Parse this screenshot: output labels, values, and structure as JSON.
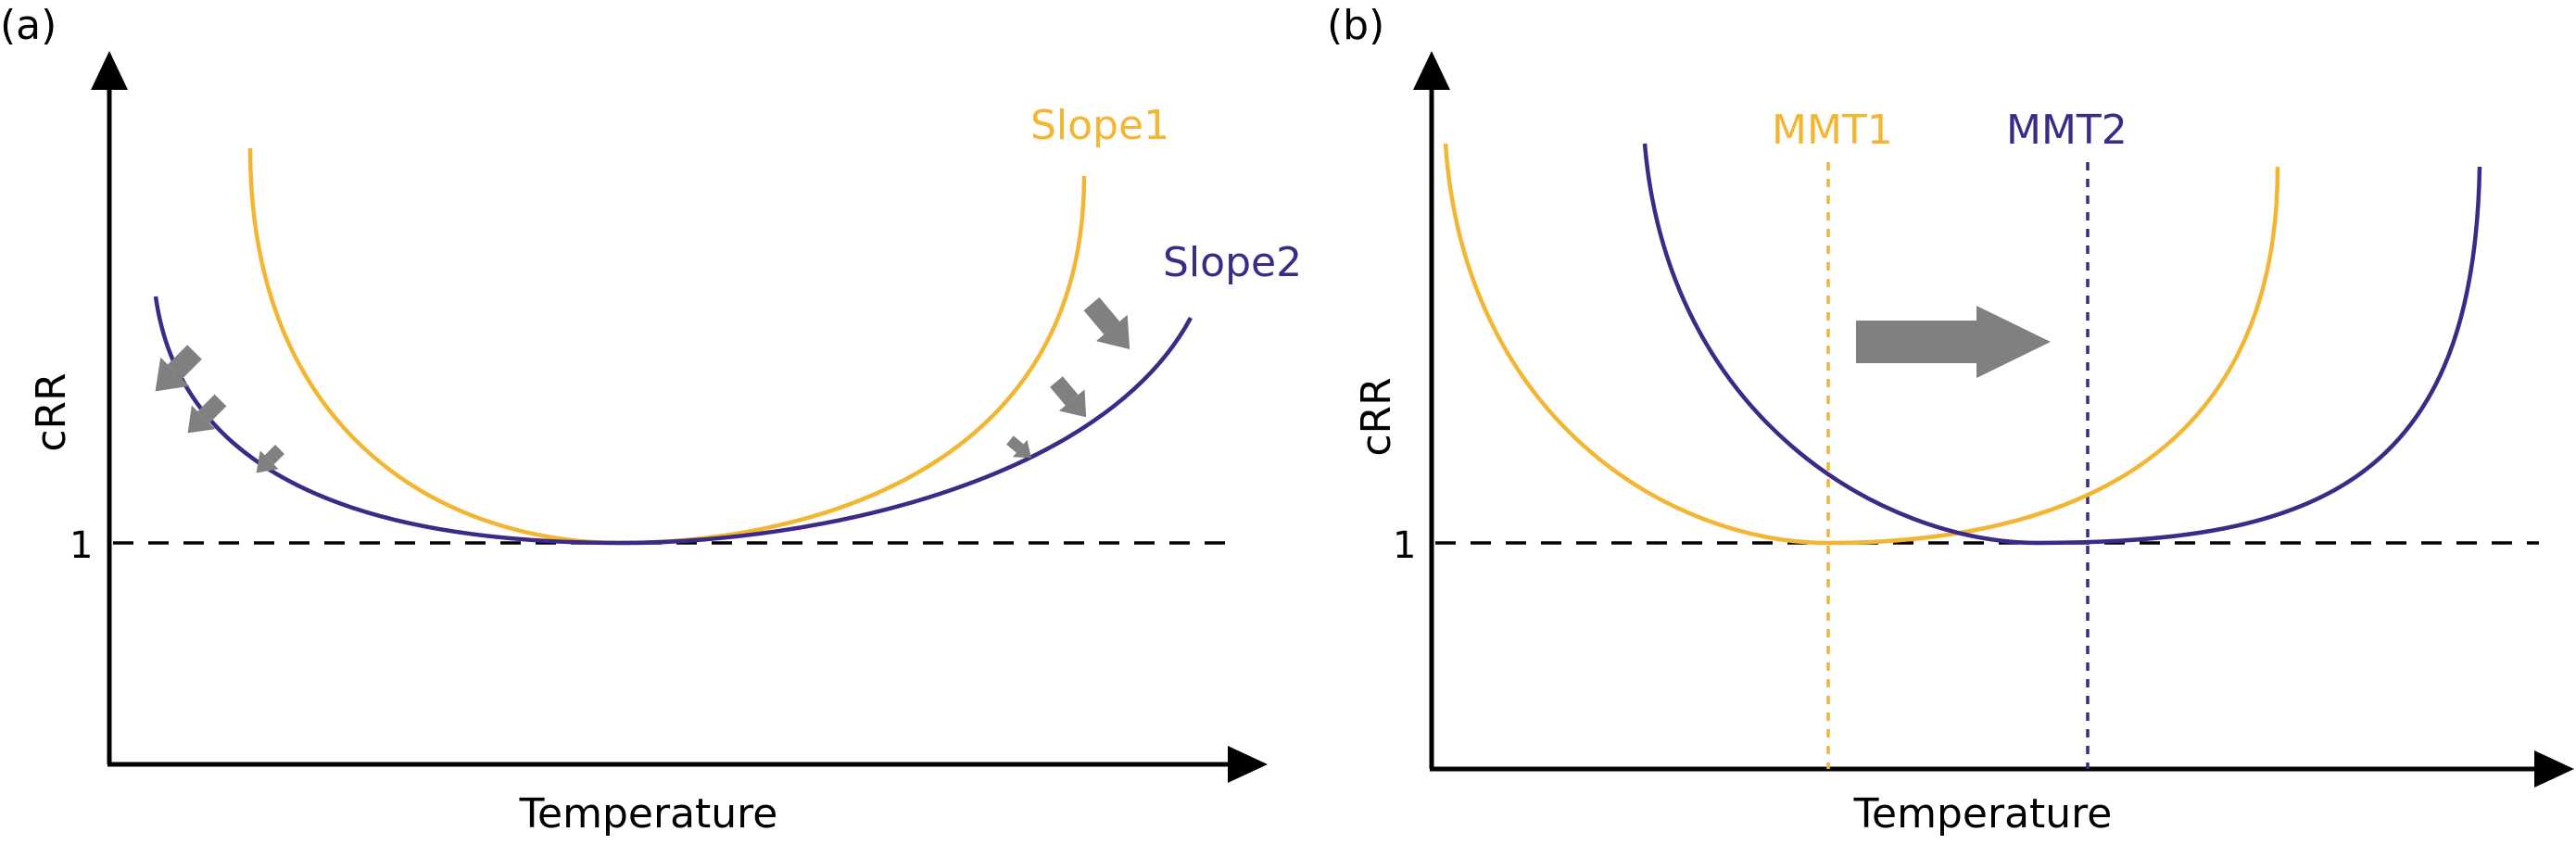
{
  "panels": {
    "a": {
      "label": "(a)",
      "xlabel": "Temperature",
      "ylabel": "cRR",
      "ref_tick": "1",
      "curve1_label": "Slope1",
      "curve2_label": "Slope2"
    },
    "b": {
      "label": "(b)",
      "xlabel": "Temperature",
      "ylabel": "cRR",
      "ref_tick": "1",
      "curve1_label": "MMT1",
      "curve2_label": "MMT2"
    }
  },
  "colors": {
    "curve1": "#F2B632",
    "curve2": "#3B2A86",
    "axis": "#000000",
    "arrow": "#808080"
  }
}
